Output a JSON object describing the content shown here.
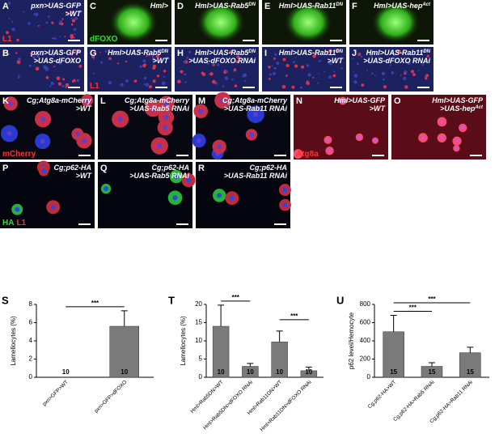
{
  "panels": [
    {
      "letter": "A",
      "lines": [
        {
          "text": "pxn>UAS-GFP"
        },
        {
          "text": ">WT"
        }
      ],
      "stain": [
        {
          "text": "L1",
          "color": "#ff3030"
        }
      ]
    },
    {
      "letter": "B",
      "lines": [
        {
          "text": "pxn>UAS-GFP"
        },
        {
          "text": ">UAS-dFOXO"
        }
      ],
      "stain": []
    },
    {
      "letter": "C",
      "lines": [
        {
          "text": "Hml>"
        }
      ],
      "stain": [
        {
          "text": "dFOXO",
          "color": "#33dd33"
        }
      ]
    },
    {
      "letter": "D",
      "lines": [
        {
          "text": "Hml>UAS-Rab5",
          "sup": "DN"
        }
      ],
      "stain": []
    },
    {
      "letter": "E",
      "lines": [
        {
          "text": "Hml>UAS-Rab11",
          "sup": "DN"
        }
      ],
      "stain": []
    },
    {
      "letter": "F",
      "lines": [
        {
          "text": "Hml>UAS-hep",
          "sup": "Act"
        }
      ],
      "stain": []
    },
    {
      "letter": "G",
      "lines": [
        {
          "text": "Hml>UAS-Rab5",
          "sup": "DN"
        },
        {
          "text": ">WT"
        }
      ],
      "stain": [
        {
          "text": "L1",
          "color": "#ff3030"
        }
      ]
    },
    {
      "letter": "H",
      "lines": [
        {
          "text": "Hml>UAS-Rab5",
          "sup": "DN"
        },
        {
          "text": ">UAS-dFOXO RNAi"
        }
      ],
      "stain": []
    },
    {
      "letter": "I",
      "lines": [
        {
          "text": "Hml>UAS-Rab11",
          "sup": "DN"
        },
        {
          "text": ">WT"
        }
      ],
      "stain": []
    },
    {
      "letter": "J",
      "lines": [
        {
          "text": "Hml>UAS-Rab11",
          "sup": "DN"
        },
        {
          "text": ">UAS-dFOXO RNAi"
        }
      ],
      "stain": []
    },
    {
      "letter": "K",
      "lines": [
        {
          "text": "Cg;Atg8a-mCherry"
        },
        {
          "text": ">WT"
        }
      ],
      "stain": [
        {
          "text": "mCherry",
          "color": "#ff3030"
        }
      ]
    },
    {
      "letter": "L",
      "lines": [
        {
          "text": "Cg;Atg8a-mCherry"
        },
        {
          "text": ">UAS-Rab5 RNAi"
        }
      ],
      "stain": []
    },
    {
      "letter": "M",
      "lines": [
        {
          "text": "Cg;Atg8a-mCherry"
        },
        {
          "text": ">UAS-Rab11 RNAi"
        }
      ],
      "stain": []
    },
    {
      "letter": "N",
      "lines": [
        {
          "text": "Hml>UAS-GFP"
        },
        {
          "text": ">WT"
        }
      ],
      "stain": [
        {
          "text": "Atg8a",
          "color": "#ff3030"
        }
      ]
    },
    {
      "letter": "O",
      "lines": [
        {
          "text": "Hml>UAS-GFP"
        },
        {
          "text": ">UAS-hep",
          "sup": "Act"
        }
      ],
      "stain": []
    },
    {
      "letter": "P",
      "lines": [
        {
          "text": "Cg;p62-HA"
        },
        {
          "text": ">WT"
        }
      ],
      "stain": [
        {
          "text": "HA",
          "color": "#33dd33"
        },
        {
          "text": "L1",
          "color": "#ff3030"
        }
      ]
    },
    {
      "letter": "Q",
      "lines": [
        {
          "text": "Cg;p62-HA"
        },
        {
          "text": ">UAS-Rab5 RNAi"
        }
      ],
      "stain": []
    },
    {
      "letter": "R",
      "lines": [
        {
          "text": "Cg;p62-HA"
        },
        {
          "text": ">UAS-Rab11 RNAi"
        }
      ],
      "stain": []
    }
  ],
  "chart_data": [
    {
      "type": "bar",
      "letter": "S",
      "ylabel": "Lamellocytes (%)",
      "categories": [
        "pxn>GFP>WT",
        "pxn>GFP>dFOXO"
      ],
      "values": [
        0,
        5.6
      ],
      "errors": [
        0,
        1.7
      ],
      "n_labels": [
        "10",
        "10"
      ],
      "color": "#7a7a7a",
      "ylim": [
        0,
        8
      ],
      "yticks": [
        0,
        2,
        4,
        6,
        8
      ],
      "significance": [
        {
          "label": "***",
          "between": [
            0,
            1
          ]
        }
      ]
    },
    {
      "type": "bar",
      "letter": "T",
      "ylabel": "Lamellocytes (%)",
      "categories": [
        "Hml>Rab5DN>WT",
        "Hml>Rab5DN>dFOXO RNAi",
        "Hml>Rab11DN>WT",
        "Hml>Rab11DN>dFOXO RNAi"
      ],
      "values": [
        14,
        3,
        9.7,
        1.8
      ],
      "errors": [
        5.8,
        0.8,
        3,
        1
      ],
      "n_labels": [
        "10",
        "10",
        "10",
        "10"
      ],
      "color": "#7a7a7a",
      "ylim": [
        0,
        20
      ],
      "yticks": [
        0,
        5,
        10,
        15,
        20
      ],
      "significance": [
        {
          "label": "***",
          "between": [
            0,
            1
          ]
        },
        {
          "label": "***",
          "between": [
            2,
            3
          ]
        }
      ]
    },
    {
      "type": "bar",
      "letter": "U",
      "ylabel": "p62 level/Hemocyte",
      "categories": [
        "Cg;p62-HA>WT",
        "Cg;p62-HA>Rab5 RNAi",
        "Cg;p62-HA>Rab11 RNAi"
      ],
      "values": [
        500,
        120,
        270
      ],
      "errors": [
        180,
        40,
        60
      ],
      "n_labels": [
        "15",
        "15",
        "15"
      ],
      "color": "#7a7a7a",
      "ylim": [
        0,
        800
      ],
      "yticks": [
        0,
        200,
        400,
        600,
        800
      ],
      "significance": [
        {
          "label": "***",
          "between": [
            0,
            1
          ]
        },
        {
          "label": "***",
          "between": [
            0,
            2
          ]
        }
      ]
    }
  ]
}
